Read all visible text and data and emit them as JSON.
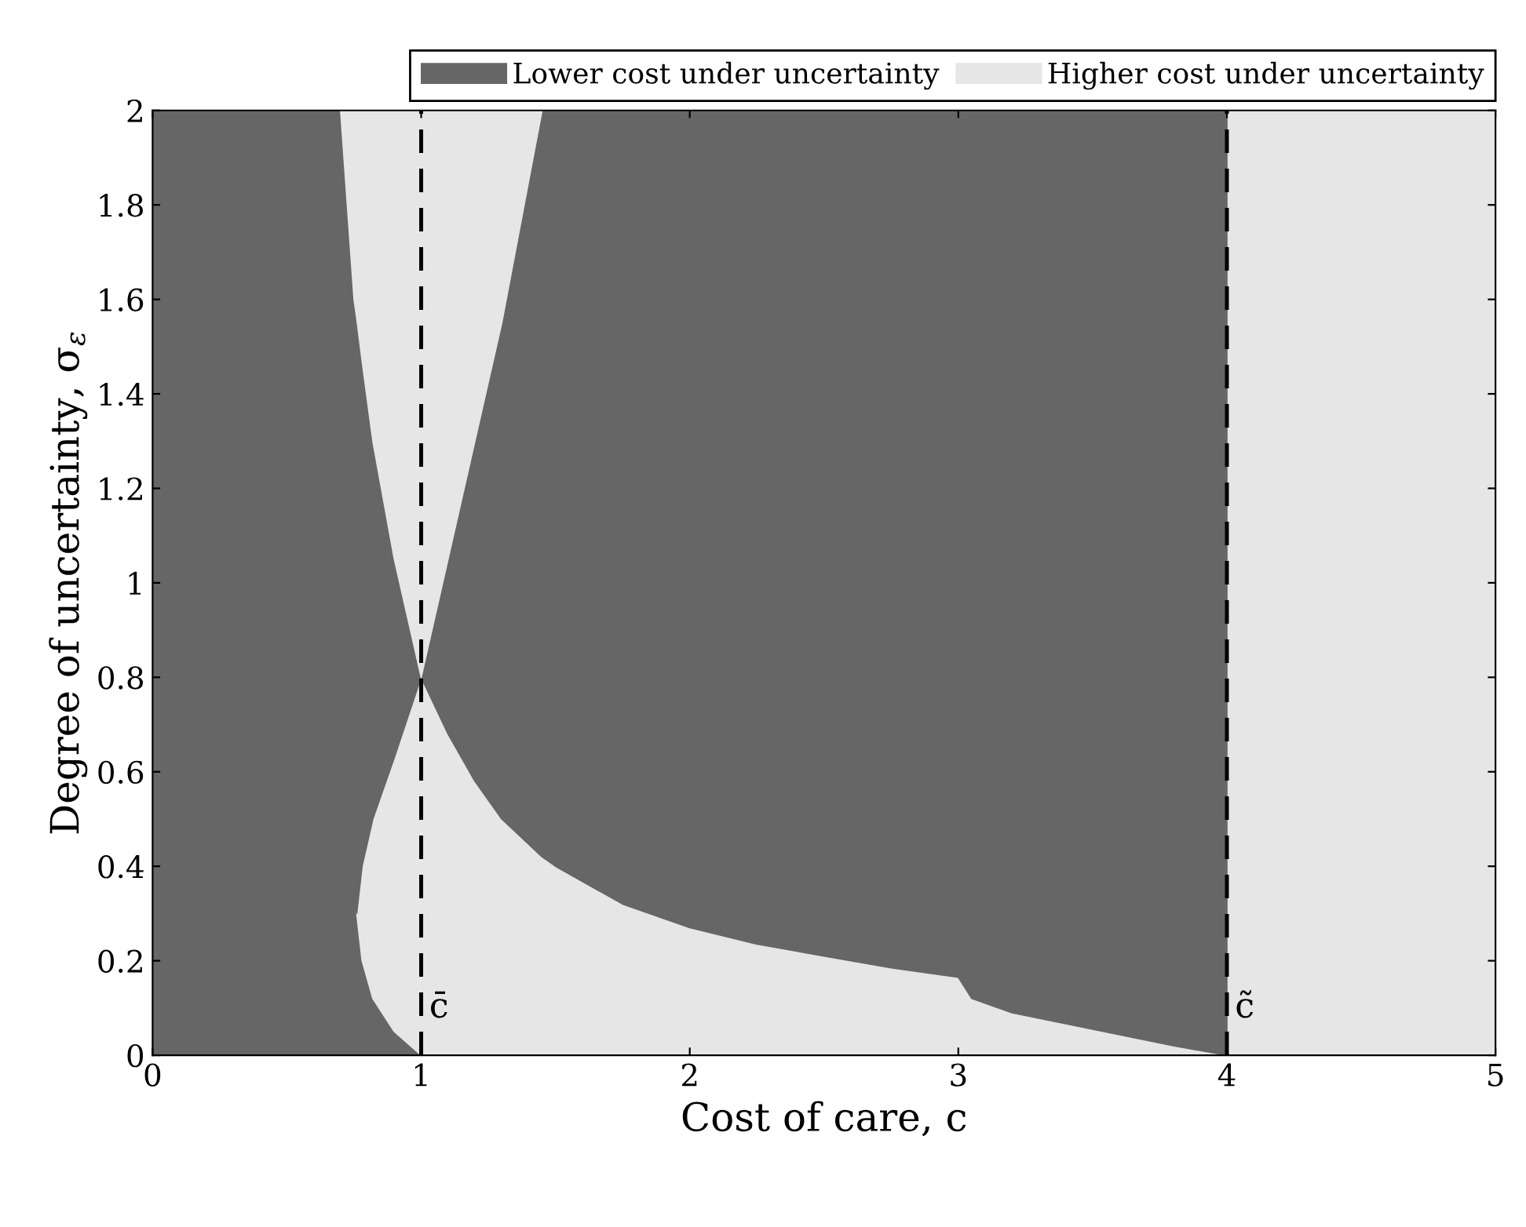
{
  "chart_data": {
    "type": "area",
    "stacked": true,
    "xlabel": "Cost of care, c",
    "ylabel": "Degree of uncertainty, σ$_{ε}$",
    "xlim": [
      0,
      5
    ],
    "ylim": [
      0,
      2
    ],
    "xticks": [
      0,
      1,
      2,
      3,
      4,
      5
    ],
    "yticks": [
      0,
      0.2,
      0.4,
      0.6,
      0.8,
      1,
      1.2,
      1.4,
      1.6,
      1.8,
      2
    ],
    "grid": false,
    "legend": "top",
    "x": [
      0,
      0.7,
      0.75,
      0.76,
      0.78,
      0.82,
      0.9,
      1,
      1.1,
      1.2,
      1.3,
      1.45,
      1.5,
      1.75,
      2,
      2.25,
      2.5,
      2.75,
      3,
      3.05,
      3.2,
      3.5,
      3.8,
      4,
      4,
      5
    ],
    "series": [
      {
        "name": "Lower cost under uncertainty",
        "color": "#666666",
        "values": [
          2,
          2,
          1.6,
          0.3,
          0.2,
          0.12,
          0.05,
          0,
          null,
          null,
          null,
          null,
          null,
          null,
          null,
          null,
          null,
          null,
          null,
          null,
          null,
          null,
          null,
          null,
          null,
          null
        ]
      },
      {
        "name": "Higher cost under uncertainty",
        "color": "#e6e6e6",
        "values": [
          null,
          null,
          null,
          0,
          0.2,
          0.38,
          0.58,
          0.8,
          0.68,
          0.58,
          0.5,
          0.42,
          0.4,
          0.32,
          0.27,
          0.235,
          0.21,
          0.185,
          0.165,
          0.12,
          0.09,
          0.055,
          0.02,
          0,
          2,
          2
        ]
      },
      {
        "color": "#666666",
        "values": [
          null,
          null,
          0,
          1.26,
          1.07,
          0.8,
          0.42,
          0,
          0.37,
          0.72,
          1.05,
          1.58,
          1.6,
          1.68,
          1.73,
          1.765,
          1.79,
          1.815,
          1.835,
          1.88,
          1.91,
          1.945,
          1.98,
          2,
          null,
          null
        ]
      },
      {
        "color": "#e6e6e6",
        "values": [
          null,
          0,
          0.4,
          0.44,
          0.53,
          0.7,
          0.95,
          1.2,
          0.95,
          0.7,
          0.45,
          0,
          null,
          null,
          null,
          null,
          null,
          null,
          null,
          null,
          null,
          null,
          null,
          null,
          null,
          null
        ]
      }
    ],
    "ref_lines": [
      {
        "axis": "x",
        "value": 1,
        "label": "c̄",
        "color": "#000000",
        "line_style": "dashed"
      },
      {
        "axis": "x",
        "value": 4,
        "label": "c̃",
        "color": "#000000",
        "line_style": "dashed"
      }
    ]
  }
}
